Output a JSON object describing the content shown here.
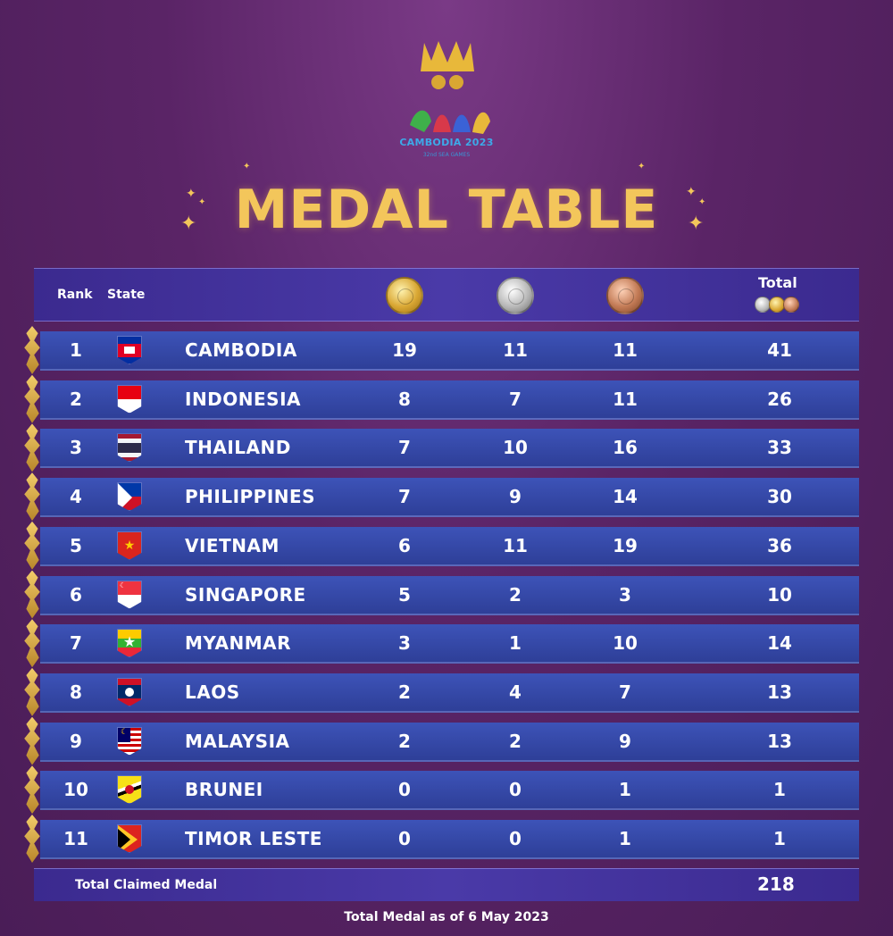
{
  "logo": {
    "title": "CAMBODIA 2023",
    "subtitle": "32nd SEA GAMES"
  },
  "title": "MEDAL TABLE",
  "header": {
    "rank": "Rank",
    "state": "State",
    "total": "Total"
  },
  "rows": [
    {
      "rank": "1",
      "country": "CAMBODIA",
      "gold": "19",
      "silver": "11",
      "bronze": "11",
      "total": "41",
      "flag": "cambodia-flag-icon"
    },
    {
      "rank": "2",
      "country": "INDONESIA",
      "gold": "8",
      "silver": "7",
      "bronze": "11",
      "total": "26",
      "flag": "indonesia-flag-icon"
    },
    {
      "rank": "3",
      "country": "THAILAND",
      "gold": "7",
      "silver": "10",
      "bronze": "16",
      "total": "33",
      "flag": "thailand-flag-icon"
    },
    {
      "rank": "4",
      "country": "PHILIPPINES",
      "gold": "7",
      "silver": "9",
      "bronze": "14",
      "total": "30",
      "flag": "philippines-flag-icon"
    },
    {
      "rank": "5",
      "country": "VIETNAM",
      "gold": "6",
      "silver": "11",
      "bronze": "19",
      "total": "36",
      "flag": "vietnam-flag-icon"
    },
    {
      "rank": "6",
      "country": "SINGAPORE",
      "gold": "5",
      "silver": "2",
      "bronze": "3",
      "total": "10",
      "flag": "singapore-flag-icon"
    },
    {
      "rank": "7",
      "country": "MYANMAR",
      "gold": "3",
      "silver": "1",
      "bronze": "10",
      "total": "14",
      "flag": "myanmar-flag-icon"
    },
    {
      "rank": "8",
      "country": "LAOS",
      "gold": "2",
      "silver": "4",
      "bronze": "7",
      "total": "13",
      "flag": "laos-flag-icon"
    },
    {
      "rank": "9",
      "country": "MALAYSIA",
      "gold": "2",
      "silver": "2",
      "bronze": "9",
      "total": "13",
      "flag": "malaysia-flag-icon"
    },
    {
      "rank": "10",
      "country": "BRUNEI",
      "gold": "0",
      "silver": "0",
      "bronze": "1",
      "total": "1",
      "flag": "brunei-flag-icon"
    },
    {
      "rank": "11",
      "country": "TIMOR LESTE",
      "gold": "0",
      "silver": "0",
      "bronze": "1",
      "total": "1",
      "flag": "timor-leste-flag-icon"
    }
  ],
  "footer": {
    "total_label": "Total Claimed Medal",
    "total_value": "218",
    "note": "Total Medal as of 6 May 2023"
  },
  "colors": {
    "background": "#5a2466",
    "title_gold": "#f3c65b",
    "row_blue": "#2e3f98"
  }
}
